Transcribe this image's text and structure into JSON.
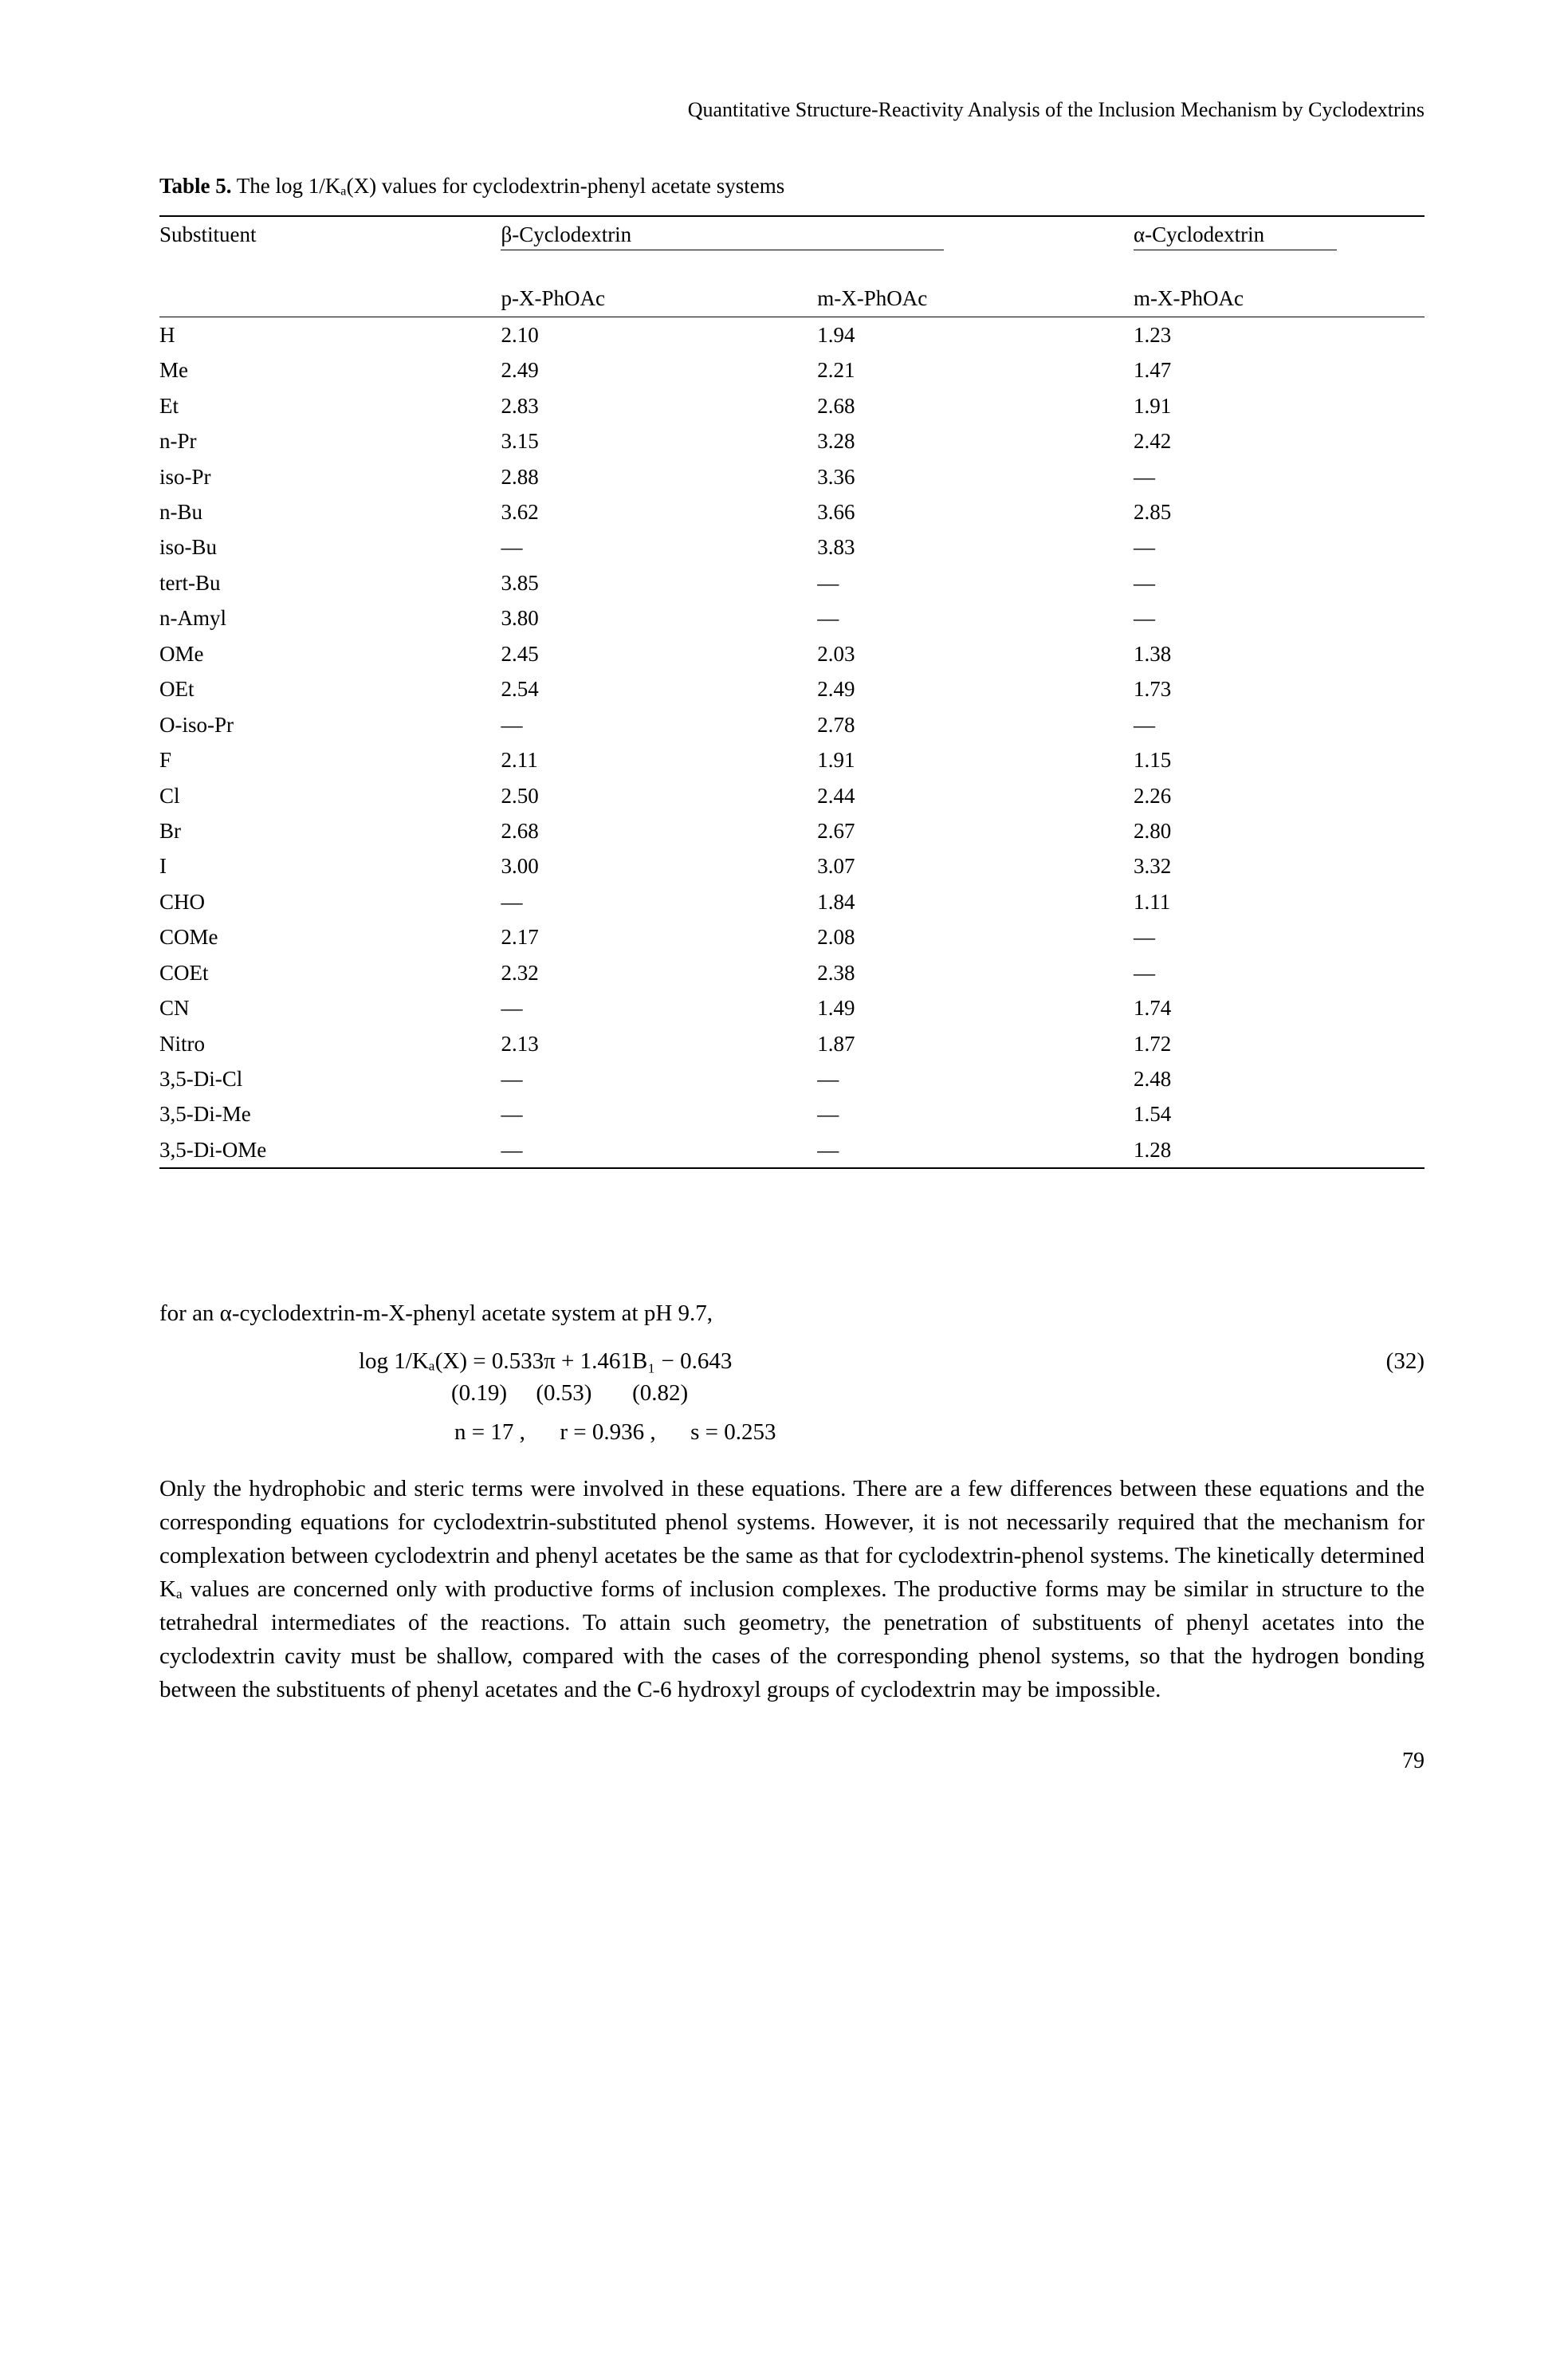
{
  "running_header": "Quantitative Structure-Reactivity Analysis of the Inclusion Mechanism by Cyclodextrins",
  "table": {
    "caption_prefix": "Table 5.",
    "caption_text": " The log 1/Kₐ(X) values for cyclodextrin-phenyl acetate systems",
    "head": {
      "substituent": "Substituent",
      "beta": "β-Cyclodextrin",
      "alpha": "α-Cyclodextrin",
      "col_p": "p-X-PhOAc",
      "col_m1": "m-X-PhOAc",
      "col_m2": "m-X-PhOAc"
    },
    "rows": [
      {
        "s": "H",
        "a": "2.10",
        "b": "1.94",
        "c": "1.23"
      },
      {
        "s": "Me",
        "a": "2.49",
        "b": "2.21",
        "c": "1.47"
      },
      {
        "s": "Et",
        "a": "2.83",
        "b": "2.68",
        "c": "1.91"
      },
      {
        "s": "n-Pr",
        "a": "3.15",
        "b": "3.28",
        "c": "2.42"
      },
      {
        "s": "iso-Pr",
        "a": "2.88",
        "b": "3.36",
        "c": "—"
      },
      {
        "s": "n-Bu",
        "a": "3.62",
        "b": "3.66",
        "c": "2.85"
      },
      {
        "s": "iso-Bu",
        "a": "—",
        "b": "3.83",
        "c": "—"
      },
      {
        "s": "tert-Bu",
        "a": "3.85",
        "b": "—",
        "c": "—"
      },
      {
        "s": "n-Amyl",
        "a": "3.80",
        "b": "—",
        "c": "—"
      },
      {
        "s": "OMe",
        "a": "2.45",
        "b": "2.03",
        "c": "1.38"
      },
      {
        "s": "OEt",
        "a": "2.54",
        "b": "2.49",
        "c": "1.73"
      },
      {
        "s": "O-iso-Pr",
        "a": "—",
        "b": "2.78",
        "c": "—"
      },
      {
        "s": "F",
        "a": "2.11",
        "b": "1.91",
        "c": "1.15"
      },
      {
        "s": "Cl",
        "a": "2.50",
        "b": "2.44",
        "c": "2.26"
      },
      {
        "s": "Br",
        "a": "2.68",
        "b": "2.67",
        "c": "2.80"
      },
      {
        "s": "I",
        "a": "3.00",
        "b": "3.07",
        "c": "3.32"
      },
      {
        "s": "CHO",
        "a": "—",
        "b": "1.84",
        "c": "1.11"
      },
      {
        "s": "COMe",
        "a": "2.17",
        "b": "2.08",
        "c": "—"
      },
      {
        "s": "COEt",
        "a": "2.32",
        "b": "2.38",
        "c": "—"
      },
      {
        "s": "CN",
        "a": "—",
        "b": "1.49",
        "c": "1.74"
      },
      {
        "s": "Nitro",
        "a": "2.13",
        "b": "1.87",
        "c": "1.72"
      },
      {
        "s": "3,5-Di-Cl",
        "a": "—",
        "b": "—",
        "c": "2.48"
      },
      {
        "s": "3,5-Di-Me",
        "a": "—",
        "b": "—",
        "c": "1.54"
      },
      {
        "s": "3,5-Di-OMe",
        "a": "—",
        "b": "—",
        "c": "1.28"
      }
    ]
  },
  "lead_sentence": "for an α-cyclodextrin-m-X-phenyl acetate system at pH 9.7,",
  "equation": {
    "line": "log 1/Kₐ(X) = 0.533π + 1.461B₁ − 0.643",
    "errs": "                (0.19)     (0.53)       (0.82)",
    "stats": "n = 17 ,      r = 0.936 ,      s = 0.253",
    "num": "(32)"
  },
  "paragraph": "Only the hydrophobic and steric terms were involved in these equations. There are a few differences between these equations and the corresponding equations for cyclodextrin-substituted phenol systems. However, it is not necessarily required that the mechanism for complexation between cyclodextrin and phenyl acetates be the same as that for cyclodextrin-phenol systems. The kinetically determined Kₐ values are concerned only with productive forms of inclusion complexes. The productive forms may be similar in structure to the tetrahedral intermediates of the reactions. To attain such geometry, the penetration of substituents of phenyl acetates into the cyclodextrin cavity must be shallow, compared with the cases of the corresponding phenol systems, so that the hydrogen bonding between the substituents of phenyl acetates and the C-6 hydroxyl groups of cyclodextrin may be impossible.",
  "page_number": "79"
}
